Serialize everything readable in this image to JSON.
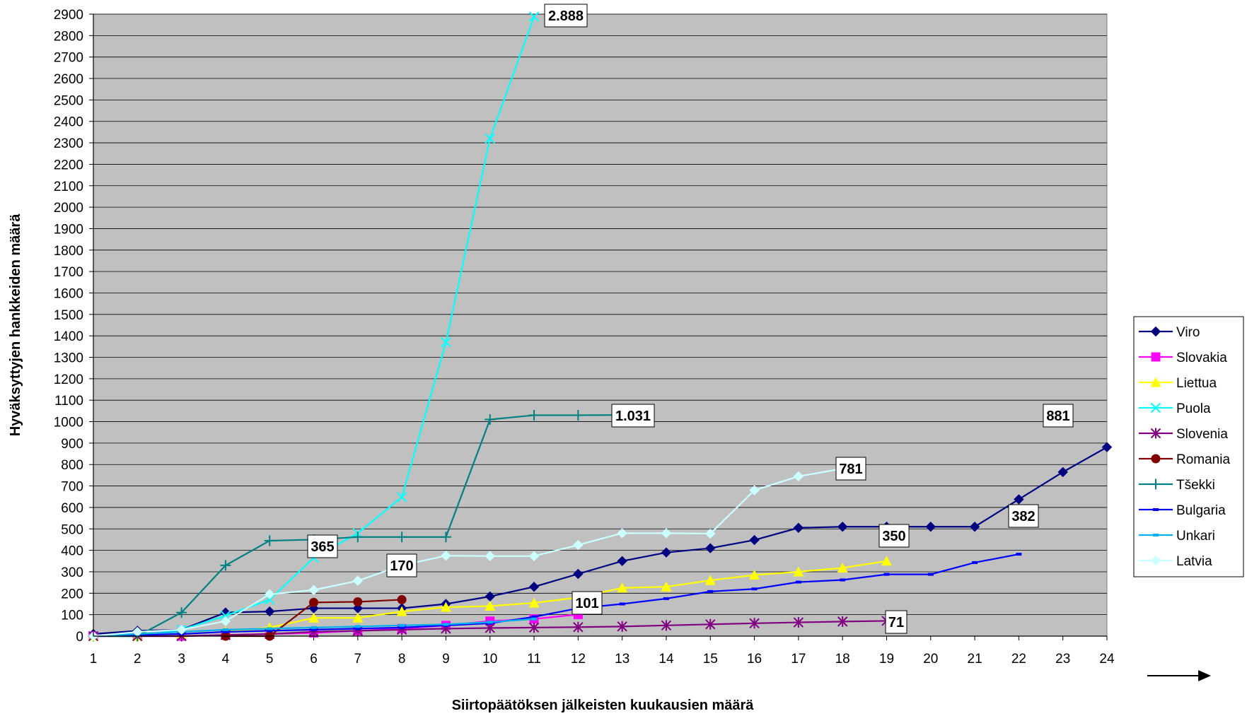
{
  "chart_data": {
    "type": "line",
    "title": "",
    "xlabel": "Siirtopäätöksen jälkeisten kuukausien määrä",
    "ylabel": "Hyväksyttyjen hankkeiden määrä",
    "xlim": [
      1,
      24
    ],
    "ylim": [
      0,
      2900
    ],
    "x_ticks": [
      "1",
      "2",
      "3",
      "4",
      "5",
      "6",
      "7",
      "8",
      "9",
      "10",
      "11",
      "12",
      "13",
      "14",
      "15",
      "16",
      "17",
      "18",
      "19",
      "20",
      "21",
      "22",
      "23",
      "24"
    ],
    "y_ticks": [
      "0",
      "100",
      "200",
      "300",
      "400",
      "500",
      "600",
      "700",
      "800",
      "900",
      "1000",
      "1100",
      "1200",
      "1300",
      "1400",
      "1500",
      "1600",
      "1700",
      "1800",
      "1900",
      "2000",
      "2100",
      "2200",
      "2300",
      "2400",
      "2500",
      "2600",
      "2700",
      "2800",
      "2900"
    ],
    "grid": true,
    "legend_position": "right",
    "series": [
      {
        "name": "Viro",
        "color": "#000080",
        "marker": "diamond",
        "x": [
          1,
          2,
          3,
          4,
          5,
          6,
          7,
          8,
          9,
          10,
          11,
          12,
          13,
          14,
          15,
          16,
          17,
          18,
          19,
          20,
          21,
          22,
          23,
          24
        ],
        "values": [
          10,
          25,
          30,
          110,
          115,
          130,
          130,
          130,
          150,
          185,
          230,
          290,
          350,
          390,
          410,
          448,
          505,
          510,
          510,
          510,
          510,
          638,
          765,
          881
        ]
      },
      {
        "name": "Slovakia",
        "color": "#FF00FF",
        "marker": "square",
        "x": [
          1,
          2,
          3,
          4,
          5,
          6,
          7,
          8,
          9,
          10,
          11,
          12
        ],
        "values": [
          0,
          0,
          0,
          5,
          10,
          15,
          25,
          35,
          50,
          70,
          80,
          101
        ]
      },
      {
        "name": "Liettua",
        "color": "#FFFF00",
        "marker": "triangle",
        "x": [
          1,
          2,
          3,
          4,
          5,
          6,
          7,
          8,
          9,
          10,
          11,
          12,
          13,
          14,
          15,
          16,
          17,
          18,
          19
        ],
        "values": [
          0,
          0,
          10,
          20,
          40,
          85,
          85,
          115,
          135,
          140,
          155,
          180,
          225,
          230,
          260,
          285,
          300,
          318,
          350
        ]
      },
      {
        "name": "Puola",
        "color": "#00FFFF",
        "marker": "x",
        "x": [
          1,
          2,
          3,
          4,
          5,
          6,
          7,
          8,
          9,
          10,
          11
        ],
        "values": [
          0,
          0,
          30,
          95,
          170,
          365,
          480,
          648,
          1370,
          2320,
          2888
        ]
      },
      {
        "name": "Slovenia",
        "color": "#800080",
        "marker": "star",
        "x": [
          1,
          2,
          3,
          4,
          5,
          6,
          7,
          8,
          9,
          10,
          11,
          12,
          13,
          14,
          15,
          16,
          17,
          18,
          19
        ],
        "values": [
          0,
          0,
          0,
          5,
          10,
          20,
          25,
          30,
          35,
          38,
          40,
          42,
          45,
          50,
          55,
          60,
          64,
          68,
          71
        ]
      },
      {
        "name": "Romania",
        "color": "#800000",
        "marker": "circle",
        "x": [
          4,
          5,
          6,
          7,
          8
        ],
        "values": [
          0,
          0,
          157,
          160,
          170
        ]
      },
      {
        "name": "Tšekki",
        "color": "#008080",
        "marker": "plus",
        "x": [
          1,
          2,
          3,
          4,
          5,
          6,
          7,
          8,
          9,
          10,
          11,
          12,
          13
        ],
        "values": [
          0,
          0,
          110,
          330,
          445,
          450,
          462,
          462,
          462,
          1010,
          1030,
          1030,
          1031
        ]
      },
      {
        "name": "Bulgaria",
        "color": "#0000FF",
        "marker": "dash",
        "x": [
          1,
          2,
          3,
          4,
          5,
          6,
          7,
          8,
          9,
          10,
          11,
          12,
          13,
          14,
          15,
          16,
          17,
          18,
          19,
          20,
          21,
          22
        ],
        "values": [
          0,
          5,
          10,
          20,
          25,
          30,
          35,
          40,
          50,
          60,
          90,
          130,
          150,
          175,
          208,
          220,
          252,
          262,
          288,
          288,
          343,
          382
        ]
      },
      {
        "name": "Unkari",
        "color": "#00B0F0",
        "marker": "dash",
        "x": [
          1,
          2,
          3,
          4,
          5,
          6,
          7,
          8,
          9,
          10,
          11
        ],
        "values": [
          0,
          10,
          20,
          30,
          35,
          40,
          45,
          50,
          55,
          65,
          80
        ]
      },
      {
        "name": "Latvia",
        "color": "#CCFFFF",
        "marker": "diamond",
        "x": [
          1,
          2,
          3,
          4,
          5,
          6,
          7,
          8,
          9,
          10,
          11,
          12,
          13,
          14,
          15,
          16,
          17,
          18
        ],
        "values": [
          0,
          20,
          30,
          70,
          195,
          215,
          258,
          330,
          375,
          373,
          373,
          425,
          480,
          480,
          478,
          680,
          745,
          781
        ]
      }
    ],
    "annotations": [
      {
        "text": "2.888",
        "series": "Puola"
      },
      {
        "text": "1.031",
        "series": "Tšekki"
      },
      {
        "text": "881",
        "series": "Viro"
      },
      {
        "text": "781",
        "series": "Latvia"
      },
      {
        "text": "382",
        "series": "Bulgaria"
      },
      {
        "text": "365",
        "series": "Puola"
      },
      {
        "text": "350",
        "series": "Liettua"
      },
      {
        "text": "170",
        "series": "Romania"
      },
      {
        "text": "101",
        "series": "Slovakia"
      },
      {
        "text": "71",
        "series": "Slovenia"
      }
    ]
  }
}
